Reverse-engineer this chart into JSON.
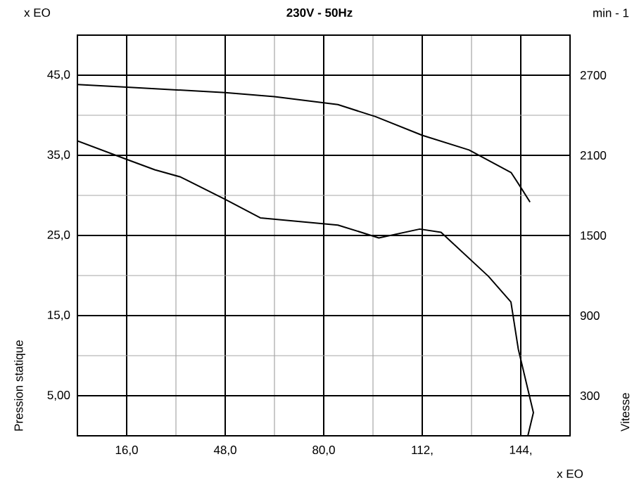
{
  "chart_data": {
    "type": "line",
    "title": "230V - 50Hz",
    "xlabel": "x EO",
    "ylabel": "Pression statique",
    "y2label": "Vitesse",
    "annotations": [
      "x EO",
      "min - 1"
    ],
    "xlim": [
      0,
      160
    ],
    "xticks": [
      {
        "value": 16,
        "label": "16,0"
      },
      {
        "value": 48,
        "label": "48,0"
      },
      {
        "value": 80,
        "label": "80,0"
      },
      {
        "value": 112,
        "label": "112,"
      },
      {
        "value": 144,
        "label": "144,"
      }
    ],
    "ylim": [
      0,
      50
    ],
    "yticks": [
      {
        "value": 5,
        "label": "5,00"
      },
      {
        "value": 15,
        "label": "15,0"
      },
      {
        "value": 25,
        "label": "25,0"
      },
      {
        "value": 35,
        "label": "35,0"
      },
      {
        "value": 45,
        "label": "45,0"
      }
    ],
    "y2lim": [
      0,
      3000
    ],
    "y2ticks": [
      300,
      900,
      1500,
      2100,
      2700
    ],
    "grid": true,
    "series": [
      {
        "color": "#000000",
        "axis": "y2",
        "x": [
          0,
          16,
          48,
          64,
          84.6,
          96.8,
          112,
          127.2,
          140.9,
          144,
          147
        ],
        "values": [
          2630,
          2610,
          2570,
          2540,
          2480,
          2390,
          2250,
          2140,
          1970,
          1860,
          1750
        ]
      },
      {
        "color": "#000000",
        "x": [
          0,
          16,
          25.1,
          33.5,
          48,
          59.4,
          84.6,
          97.9,
          111.2,
          118.1,
          133.5,
          140.8,
          143.2,
          148.1,
          146.3
        ],
        "values": [
          36.8,
          34.5,
          33.2,
          32.3,
          29.5,
          27.2,
          26.3,
          24.7,
          25.8,
          25.4,
          19.9,
          16.7,
          10.8,
          2.9,
          0
        ]
      }
    ]
  }
}
